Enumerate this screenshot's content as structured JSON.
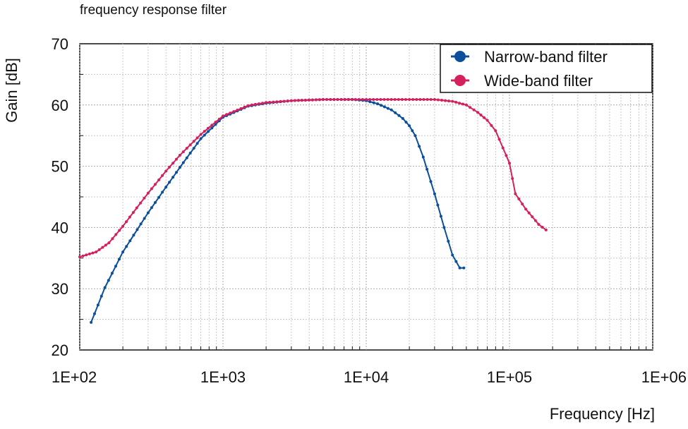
{
  "chart_data": {
    "type": "line",
    "title": "frequency response filter",
    "xlabel": "Frequency [Hz]",
    "ylabel": "Gain [dB]",
    "x_scale": "log",
    "xlim": [
      100,
      1000000
    ],
    "ylim": [
      20,
      70
    ],
    "x_ticks": [
      100,
      1000,
      10000,
      100000,
      1000000
    ],
    "x_tick_labels": [
      "1E+02",
      "1E+03",
      "1E+04",
      "1E+05",
      "1E+06"
    ],
    "y_ticks": [
      20,
      30,
      40,
      50,
      60,
      70
    ],
    "y_tick_labels": [
      "20",
      "30",
      "40",
      "50",
      "60",
      "70"
    ],
    "grid": true,
    "legend_position": "top-right",
    "series": [
      {
        "name": "Narrow-band filter",
        "color": "#0b4f9c",
        "x": [
          120,
          150,
          200,
          300,
          400,
          500,
          700,
          1000,
          1500,
          2000,
          3000,
          5000,
          8000,
          10000,
          12000,
          15000,
          18000,
          20000,
          22000,
          25000,
          30000,
          35000,
          40000,
          45000,
          48000
        ],
        "y": [
          24.5,
          30.2,
          36.0,
          42.4,
          46.6,
          49.8,
          54.5,
          58.0,
          59.8,
          60.3,
          60.7,
          60.9,
          60.9,
          60.7,
          60.2,
          59.2,
          57.8,
          56.6,
          55.0,
          51.5,
          45.5,
          40.0,
          35.5,
          33.4,
          33.4
        ]
      },
      {
        "name": "Wide-band filter",
        "color": "#d4205e",
        "x": [
          100,
          130,
          160,
          200,
          250,
          300,
          400,
          500,
          700,
          1000,
          1500,
          2000,
          3000,
          5000,
          10000,
          20000,
          30000,
          40000,
          50000,
          60000,
          70000,
          80000,
          90000,
          100000,
          110000,
          130000,
          160000,
          180000
        ],
        "y": [
          35.2,
          36.0,
          37.5,
          40.2,
          43.2,
          45.6,
          49.2,
          51.8,
          55.2,
          58.2,
          59.9,
          60.4,
          60.7,
          60.9,
          60.9,
          60.9,
          60.9,
          60.6,
          60.0,
          58.8,
          57.5,
          55.8,
          53.0,
          50.5,
          45.5,
          43.0,
          40.5,
          39.6
        ]
      }
    ]
  }
}
